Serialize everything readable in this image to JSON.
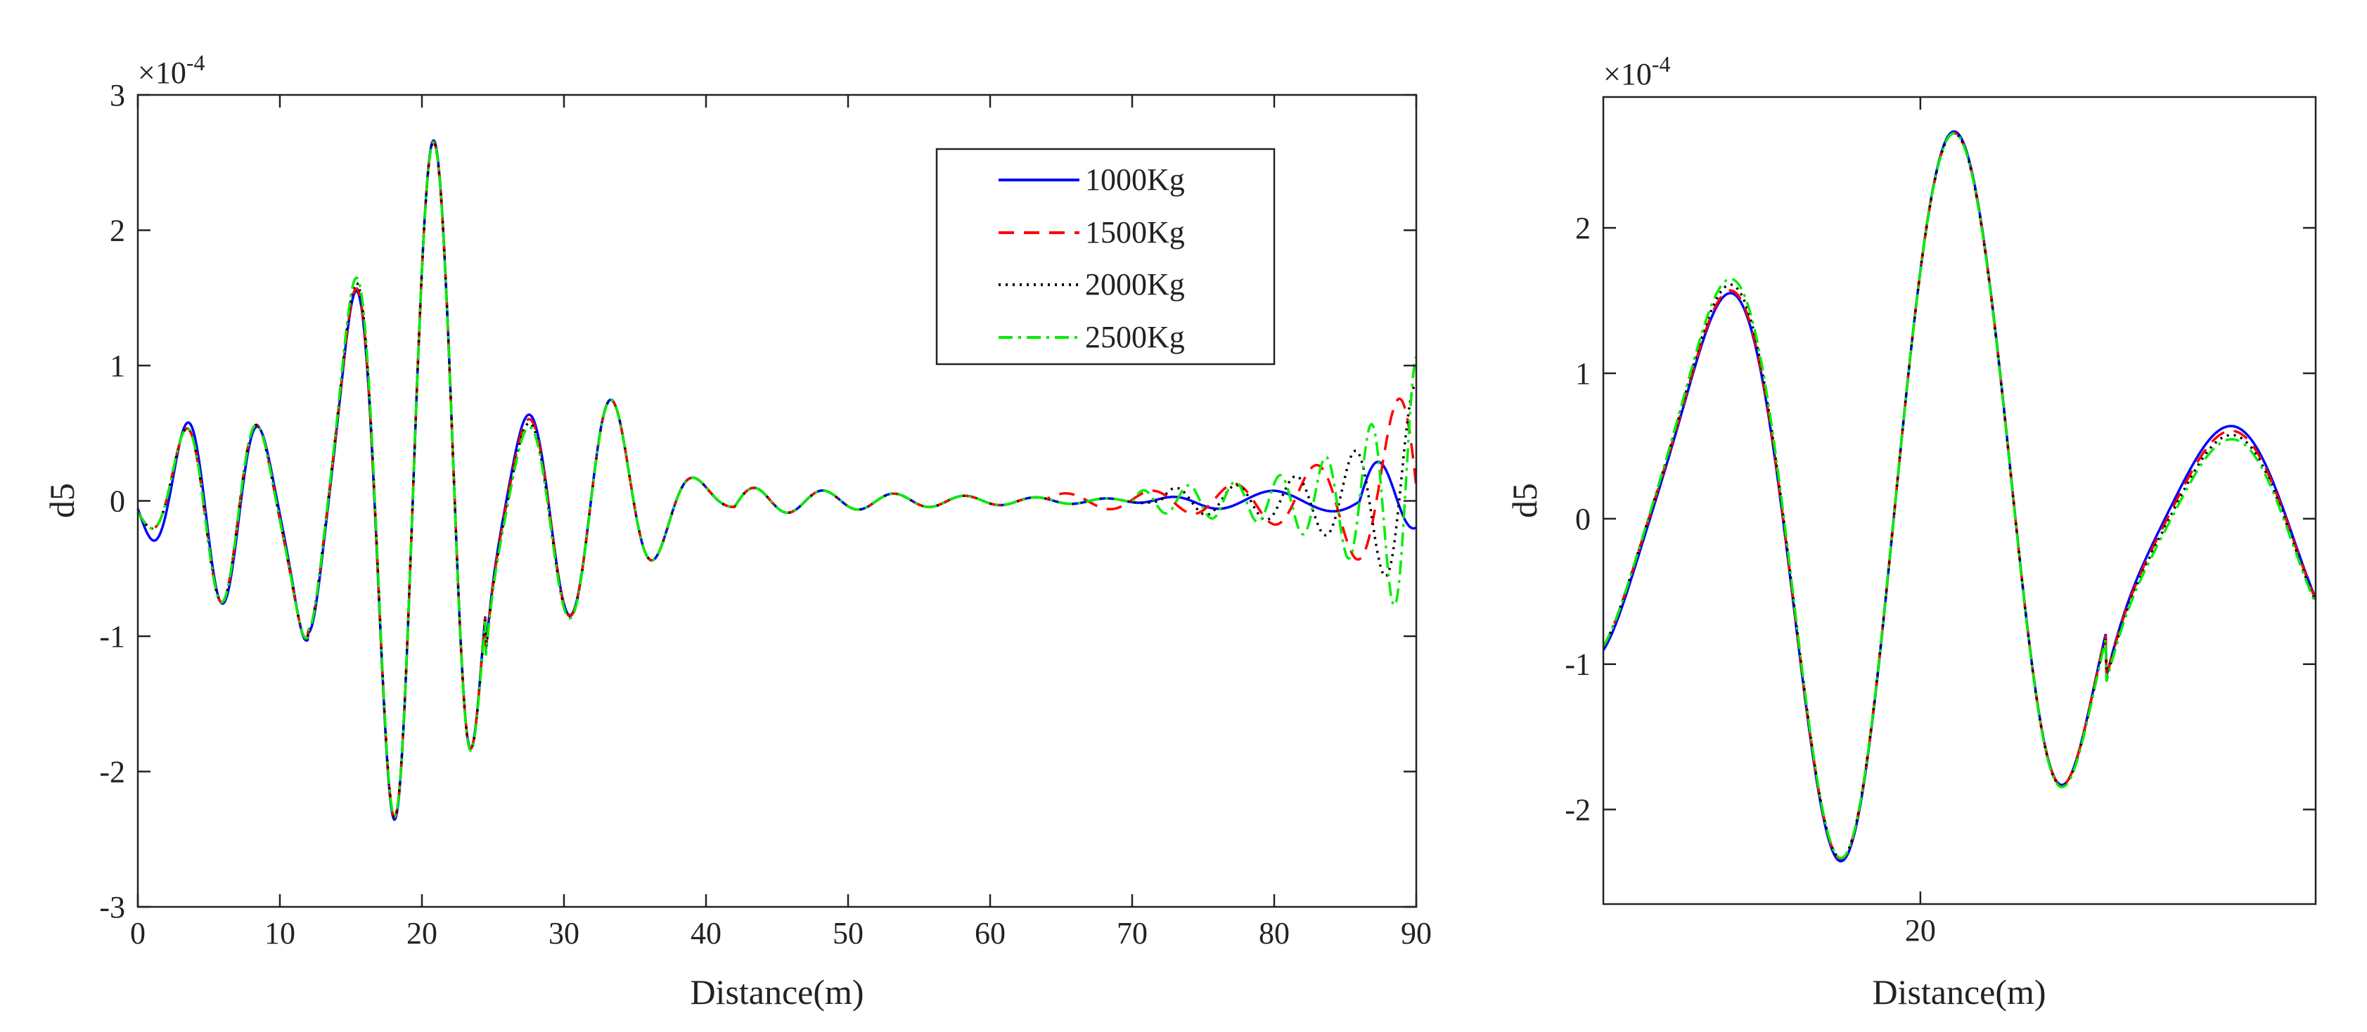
{
  "chart_data": [
    {
      "type": "line",
      "xlabel": "Distance(m)",
      "ylabel": "d5",
      "y_multiplier": "×10",
      "y_exponent": "-4",
      "xlim": [
        0,
        90
      ],
      "ylim": [
        -3,
        3
      ],
      "xticks": [
        "0",
        "10",
        "20",
        "30",
        "40",
        "50",
        "60",
        "70",
        "80",
        "90"
      ],
      "yticks": [
        "3",
        "2",
        "1",
        "0",
        "-1",
        "-2",
        "-3"
      ],
      "legend_position": "upper-right",
      "series": [
        {
          "name": "1000Kg",
          "color": "#0000ff",
          "style": "solid"
        },
        {
          "name": "1500Kg",
          "color": "#ff0000",
          "style": "dashed"
        },
        {
          "name": "2000Kg",
          "color": "#000000",
          "style": "dotted"
        },
        {
          "name": "2500Kg",
          "color": "#00ee00",
          "style": "dashdot"
        }
      ]
    },
    {
      "type": "line",
      "xlabel": "Distance(m)",
      "ylabel": "d5",
      "y_multiplier": "×10",
      "y_exponent": "-4",
      "xlim": [
        12.3,
        29.6
      ],
      "ylim": [
        -2.65,
        2.9
      ],
      "xticks": [
        "20"
      ],
      "yticks": [
        "2",
        "1",
        "0",
        "-1",
        "-2"
      ],
      "series": [
        {
          "name": "1000Kg",
          "color": "#0000ff",
          "style": "solid"
        },
        {
          "name": "1500Kg",
          "color": "#ff0000",
          "style": "dashed"
        },
        {
          "name": "2000Kg",
          "color": "#000000",
          "style": "dotted"
        },
        {
          "name": "2500Kg",
          "color": "#00ee00",
          "style": "dashdot"
        }
      ]
    }
  ]
}
